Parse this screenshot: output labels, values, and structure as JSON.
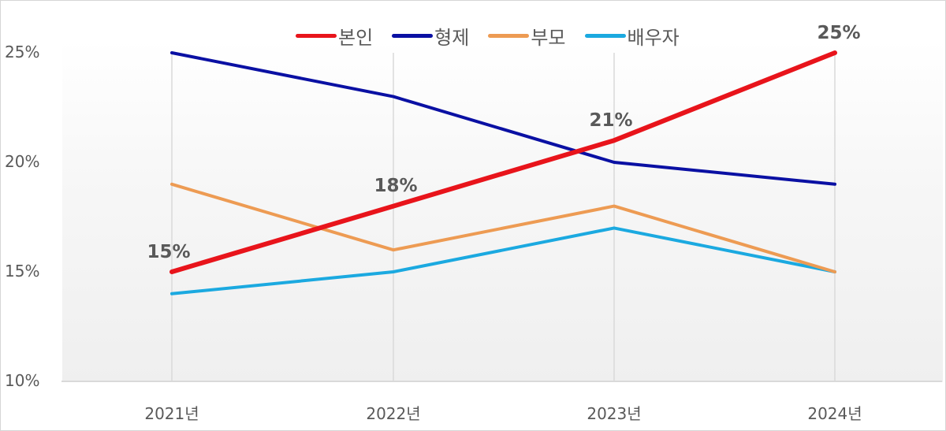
{
  "chart_data": {
    "type": "line",
    "title": "",
    "xlabel": "",
    "ylabel": "",
    "categories": [
      "2021년",
      "2022년",
      "2023년",
      "2024년"
    ],
    "series": [
      {
        "name": "본인",
        "color": "#e8141b",
        "values": [
          15,
          18,
          21,
          25
        ],
        "data_labels": [
          "15%",
          "18%",
          "21%",
          "25%"
        ]
      },
      {
        "name": "형제",
        "color": "#0a10a3",
        "values": [
          25,
          23,
          20,
          19
        ]
      },
      {
        "name": "부모",
        "color": "#ed9b53",
        "values": [
          19,
          16,
          18,
          15
        ]
      },
      {
        "name": "배우자",
        "color": "#1ba9e0",
        "values": [
          14,
          15,
          17,
          15
        ]
      }
    ],
    "ylim": [
      10,
      25
    ],
    "yticks": [
      "10%",
      "15%",
      "20%",
      "25%"
    ],
    "grid": "vertical category lines",
    "legend_position": "top"
  },
  "legend": [
    {
      "label": "본인",
      "color": "#e8141b"
    },
    {
      "label": "형제",
      "color": "#0a10a3"
    },
    {
      "label": "부모",
      "color": "#ed9b53"
    },
    {
      "label": "배우자",
      "color": "#1ba9e0"
    }
  ],
  "yaxis": {
    "ticks": [
      "25%",
      "20%",
      "15%",
      "10%"
    ]
  },
  "xaxis": {
    "ticks": [
      "2021년",
      "2022년",
      "2023년",
      "2024년"
    ]
  },
  "data_labels": [
    "15%",
    "18%",
    "21%",
    "25%"
  ]
}
